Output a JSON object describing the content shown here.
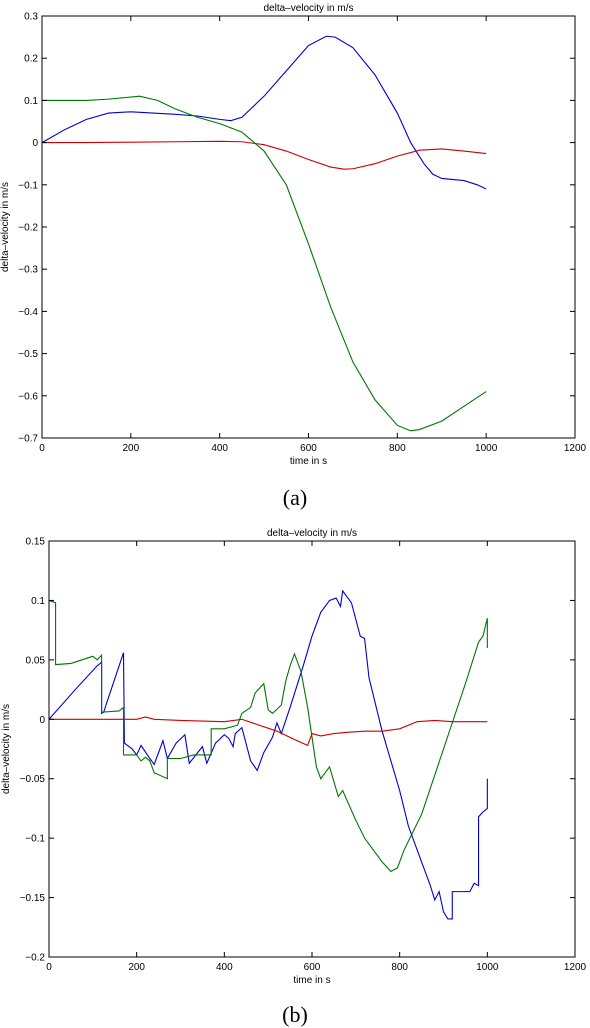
{
  "chart_data": [
    {
      "panel": "(a)",
      "type": "line",
      "title": "delta–velocity in m/s",
      "xlabel": "time in s",
      "ylabel": "delta–velocity in m/s",
      "xlim": [
        0,
        1200
      ],
      "ylim": [
        -0.7,
        0.3
      ],
      "xticks": [
        0,
        200,
        400,
        600,
        800,
        1000,
        1200
      ],
      "xtick_labels": [
        "0",
        "200",
        "400",
        "600",
        "800",
        "1000",
        "1200"
      ],
      "yticks": [
        -0.7,
        -0.6,
        -0.5,
        -0.4,
        -0.3,
        -0.2,
        -0.1,
        0,
        0.1,
        0.2,
        0.3
      ],
      "ytick_labels": [
        "−0.7",
        "−0.6",
        "−0.5",
        "−0.4",
        "−0.3",
        "−0.2",
        "−0.1",
        "0",
        "0.1",
        "0.2",
        "0.3"
      ],
      "grid": false,
      "series": [
        {
          "color": "#0000cc",
          "points": [
            [
              0,
              0
            ],
            [
              50,
              0.03
            ],
            [
              100,
              0.055
            ],
            [
              150,
              0.07
            ],
            [
              200,
              0.073
            ],
            [
              250,
              0.07
            ],
            [
              300,
              0.067
            ],
            [
              350,
              0.063
            ],
            [
              400,
              0.055
            ],
            [
              425,
              0.052
            ],
            [
              450,
              0.06
            ],
            [
              470,
              0.08
            ],
            [
              500,
              0.11
            ],
            [
              550,
              0.17
            ],
            [
              600,
              0.23
            ],
            [
              640,
              0.252
            ],
            [
              660,
              0.25
            ],
            [
              700,
              0.225
            ],
            [
              750,
              0.16
            ],
            [
              800,
              0.07
            ],
            [
              830,
              0.0
            ],
            [
              860,
              -0.05
            ],
            [
              880,
              -0.075
            ],
            [
              900,
              -0.085
            ],
            [
              950,
              -0.09
            ],
            [
              980,
              -0.1
            ],
            [
              1000,
              -0.11
            ]
          ]
        },
        {
          "color": "#007700",
          "points": [
            [
              0,
              0.1
            ],
            [
              100,
              0.1
            ],
            [
              150,
              0.103
            ],
            [
              200,
              0.108
            ],
            [
              220,
              0.11
            ],
            [
              260,
              0.1
            ],
            [
              300,
              0.08
            ],
            [
              350,
              0.06
            ],
            [
              400,
              0.045
            ],
            [
              450,
              0.025
            ],
            [
              500,
              -0.02
            ],
            [
              550,
              -0.1
            ],
            [
              600,
              -0.24
            ],
            [
              650,
              -0.39
            ],
            [
              700,
              -0.52
            ],
            [
              750,
              -0.61
            ],
            [
              800,
              -0.67
            ],
            [
              830,
              -0.683
            ],
            [
              850,
              -0.68
            ],
            [
              900,
              -0.66
            ],
            [
              950,
              -0.625
            ],
            [
              1000,
              -0.59
            ]
          ]
        },
        {
          "color": "#cc0000",
          "points": [
            [
              0,
              0
            ],
            [
              100,
              0
            ],
            [
              200,
              0.001
            ],
            [
              300,
              0.002
            ],
            [
              400,
              0.003
            ],
            [
              450,
              0.002
            ],
            [
              500,
              -0.005
            ],
            [
              550,
              -0.02
            ],
            [
              600,
              -0.04
            ],
            [
              650,
              -0.058
            ],
            [
              680,
              -0.063
            ],
            [
              700,
              -0.062
            ],
            [
              750,
              -0.05
            ],
            [
              800,
              -0.032
            ],
            [
              850,
              -0.018
            ],
            [
              900,
              -0.015
            ],
            [
              950,
              -0.02
            ],
            [
              1000,
              -0.026
            ]
          ]
        }
      ]
    },
    {
      "panel": "(b)",
      "type": "line",
      "title": "delta–velocity in m/s",
      "xlabel": "time in s",
      "ylabel": "delta–velocity in m/s",
      "xlim": [
        0,
        1200
      ],
      "ylim": [
        -0.2,
        0.15
      ],
      "xticks": [
        0,
        200,
        400,
        600,
        800,
        1000,
        1200
      ],
      "xtick_labels": [
        "0",
        "200",
        "400",
        "600",
        "800",
        "1000",
        "1200"
      ],
      "yticks": [
        -0.2,
        -0.15,
        -0.1,
        -0.05,
        0,
        0.05,
        0.1,
        0.15
      ],
      "ytick_labels": [
        "−0.2",
        "−0.15",
        "−0.1",
        "−0.05",
        "0",
        "0.05",
        "0.1",
        "0.15"
      ],
      "grid": false,
      "series": [
        {
          "color": "#0000cc",
          "points": [
            [
              0,
              0
            ],
            [
              60,
              0.025
            ],
            [
              110,
              0.045
            ],
            [
              120,
              0.048
            ],
            [
              120,
              0.005
            ],
            [
              125,
              0.006
            ],
            [
              130,
              0.012
            ],
            [
              170,
              0.056
            ],
            [
              172,
              -0.02
            ],
            [
              190,
              -0.025
            ],
            [
              200,
              -0.03
            ],
            [
              210,
              -0.022
            ],
            [
              230,
              -0.033
            ],
            [
              240,
              -0.038
            ],
            [
              260,
              -0.018
            ],
            [
              270,
              -0.033
            ],
            [
              290,
              -0.02
            ],
            [
              310,
              -0.013
            ],
            [
              320,
              -0.037
            ],
            [
              350,
              -0.023
            ],
            [
              360,
              -0.037
            ],
            [
              380,
              -0.02
            ],
            [
              400,
              -0.013
            ],
            [
              410,
              -0.016
            ],
            [
              420,
              -0.023
            ],
            [
              425,
              -0.012
            ],
            [
              440,
              -0.007
            ],
            [
              460,
              -0.035
            ],
            [
              475,
              -0.043
            ],
            [
              490,
              -0.028
            ],
            [
              510,
              -0.015
            ],
            [
              520,
              -0.003
            ],
            [
              530,
              -0.012
            ],
            [
              550,
              0.01
            ],
            [
              580,
              0.045
            ],
            [
              600,
              0.07
            ],
            [
              620,
              0.09
            ],
            [
              640,
              0.1
            ],
            [
              655,
              0.102
            ],
            [
              665,
              0.095
            ],
            [
              670,
              0.108
            ],
            [
              690,
              0.098
            ],
            [
              710,
              0.07
            ],
            [
              720,
              0.068
            ],
            [
              730,
              0.035
            ],
            [
              760,
              -0.01
            ],
            [
              800,
              -0.06
            ],
            [
              820,
              -0.09
            ],
            [
              840,
              -0.11
            ],
            [
              870,
              -0.14
            ],
            [
              880,
              -0.152
            ],
            [
              890,
              -0.145
            ],
            [
              900,
              -0.162
            ],
            [
              910,
              -0.168
            ],
            [
              920,
              -0.168
            ],
            [
              920,
              -0.145
            ],
            [
              960,
              -0.145
            ],
            [
              970,
              -0.138
            ],
            [
              980,
              -0.14
            ],
            [
              980,
              -0.082
            ],
            [
              990,
              -0.078
            ],
            [
              1000,
              -0.075
            ],
            [
              1000,
              -0.05
            ]
          ]
        },
        {
          "color": "#007700",
          "points": [
            [
              0,
              0.1
            ],
            [
              15,
              0.098
            ],
            [
              15,
              0.046
            ],
            [
              50,
              0.047
            ],
            [
              100,
              0.053
            ],
            [
              110,
              0.05
            ],
            [
              120,
              0.054
            ],
            [
              120,
              0.006
            ],
            [
              160,
              0.007
            ],
            [
              170,
              0.01
            ],
            [
              170,
              -0.03
            ],
            [
              200,
              -0.03
            ],
            [
              210,
              -0.035
            ],
            [
              220,
              -0.032
            ],
            [
              230,
              -0.035
            ],
            [
              240,
              -0.045
            ],
            [
              270,
              -0.05
            ],
            [
              270,
              -0.033
            ],
            [
              300,
              -0.033
            ],
            [
              330,
              -0.03
            ],
            [
              360,
              -0.03
            ],
            [
              370,
              -0.03
            ],
            [
              370,
              -0.008
            ],
            [
              400,
              -0.008
            ],
            [
              430,
              -0.005
            ],
            [
              440,
              0.005
            ],
            [
              460,
              0.01
            ],
            [
              470,
              0.022
            ],
            [
              490,
              0.03
            ],
            [
              500,
              0.008
            ],
            [
              510,
              0.005
            ],
            [
              530,
              0.012
            ],
            [
              540,
              0.032
            ],
            [
              550,
              0.045
            ],
            [
              560,
              0.055
            ],
            [
              575,
              0.04
            ],
            [
              590,
              0.01
            ],
            [
              600,
              -0.015
            ],
            [
              610,
              -0.04
            ],
            [
              620,
              -0.05
            ],
            [
              630,
              -0.045
            ],
            [
              640,
              -0.04
            ],
            [
              660,
              -0.065
            ],
            [
              670,
              -0.06
            ],
            [
              700,
              -0.085
            ],
            [
              720,
              -0.1
            ],
            [
              740,
              -0.11
            ],
            [
              760,
              -0.12
            ],
            [
              780,
              -0.128
            ],
            [
              795,
              -0.125
            ],
            [
              810,
              -0.11
            ],
            [
              850,
              -0.08
            ],
            [
              900,
              -0.025
            ],
            [
              950,
              0.03
            ],
            [
              980,
              0.065
            ],
            [
              990,
              0.07
            ],
            [
              1000,
              0.085
            ],
            [
              1000,
              0.06
            ]
          ]
        },
        {
          "color": "#cc0000",
          "points": [
            [
              0,
              0
            ],
            [
              100,
              0
            ],
            [
              150,
              0
            ],
            [
              200,
              0
            ],
            [
              220,
              0.002
            ],
            [
              240,
              0
            ],
            [
              300,
              -0.001
            ],
            [
              400,
              -0.002
            ],
            [
              440,
              0
            ],
            [
              480,
              -0.005
            ],
            [
              520,
              -0.01
            ],
            [
              560,
              -0.017
            ],
            [
              590,
              -0.022
            ],
            [
              600,
              -0.012
            ],
            [
              620,
              -0.014
            ],
            [
              650,
              -0.012
            ],
            [
              680,
              -0.011
            ],
            [
              720,
              -0.01
            ],
            [
              760,
              -0.01
            ],
            [
              800,
              -0.008
            ],
            [
              840,
              -0.002
            ],
            [
              880,
              -0.001
            ],
            [
              920,
              -0.002
            ],
            [
              960,
              -0.002
            ],
            [
              1000,
              -0.002
            ]
          ]
        }
      ]
    }
  ],
  "captions": [
    "(a)",
    "(b)"
  ]
}
